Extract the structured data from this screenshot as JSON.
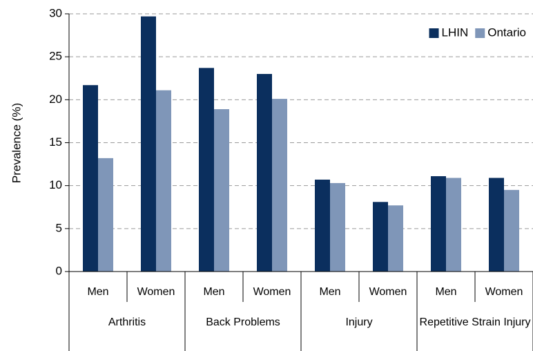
{
  "chart_data": {
    "type": "bar",
    "y_label": "Prevalence (%)",
    "groups": [
      {
        "name": "Arthritis",
        "categories": [
          "Men",
          "Women"
        ]
      },
      {
        "name": "Back Problems",
        "categories": [
          "Men",
          "Women"
        ]
      },
      {
        "name": "Injury",
        "categories": [
          "Men",
          "Women"
        ]
      },
      {
        "name": "Repetitive Strain Injury",
        "categories": [
          "Men",
          "Women"
        ]
      }
    ],
    "series": [
      {
        "name": "LHIN",
        "color": "#0b2f5e",
        "values": [
          21.7,
          29.7,
          23.7,
          23.0,
          10.7,
          8.1,
          11.1,
          10.9
        ]
      },
      {
        "name": "Ontario",
        "color": "#7f96b8",
        "values": [
          13.2,
          21.1,
          18.9,
          20.1,
          10.3,
          7.7,
          10.9,
          9.5
        ]
      }
    ],
    "ylim": [
      0,
      30
    ],
    "yticks": [
      0,
      5,
      10,
      15,
      20,
      25,
      30
    ],
    "grid": true,
    "legend": "top-right"
  }
}
